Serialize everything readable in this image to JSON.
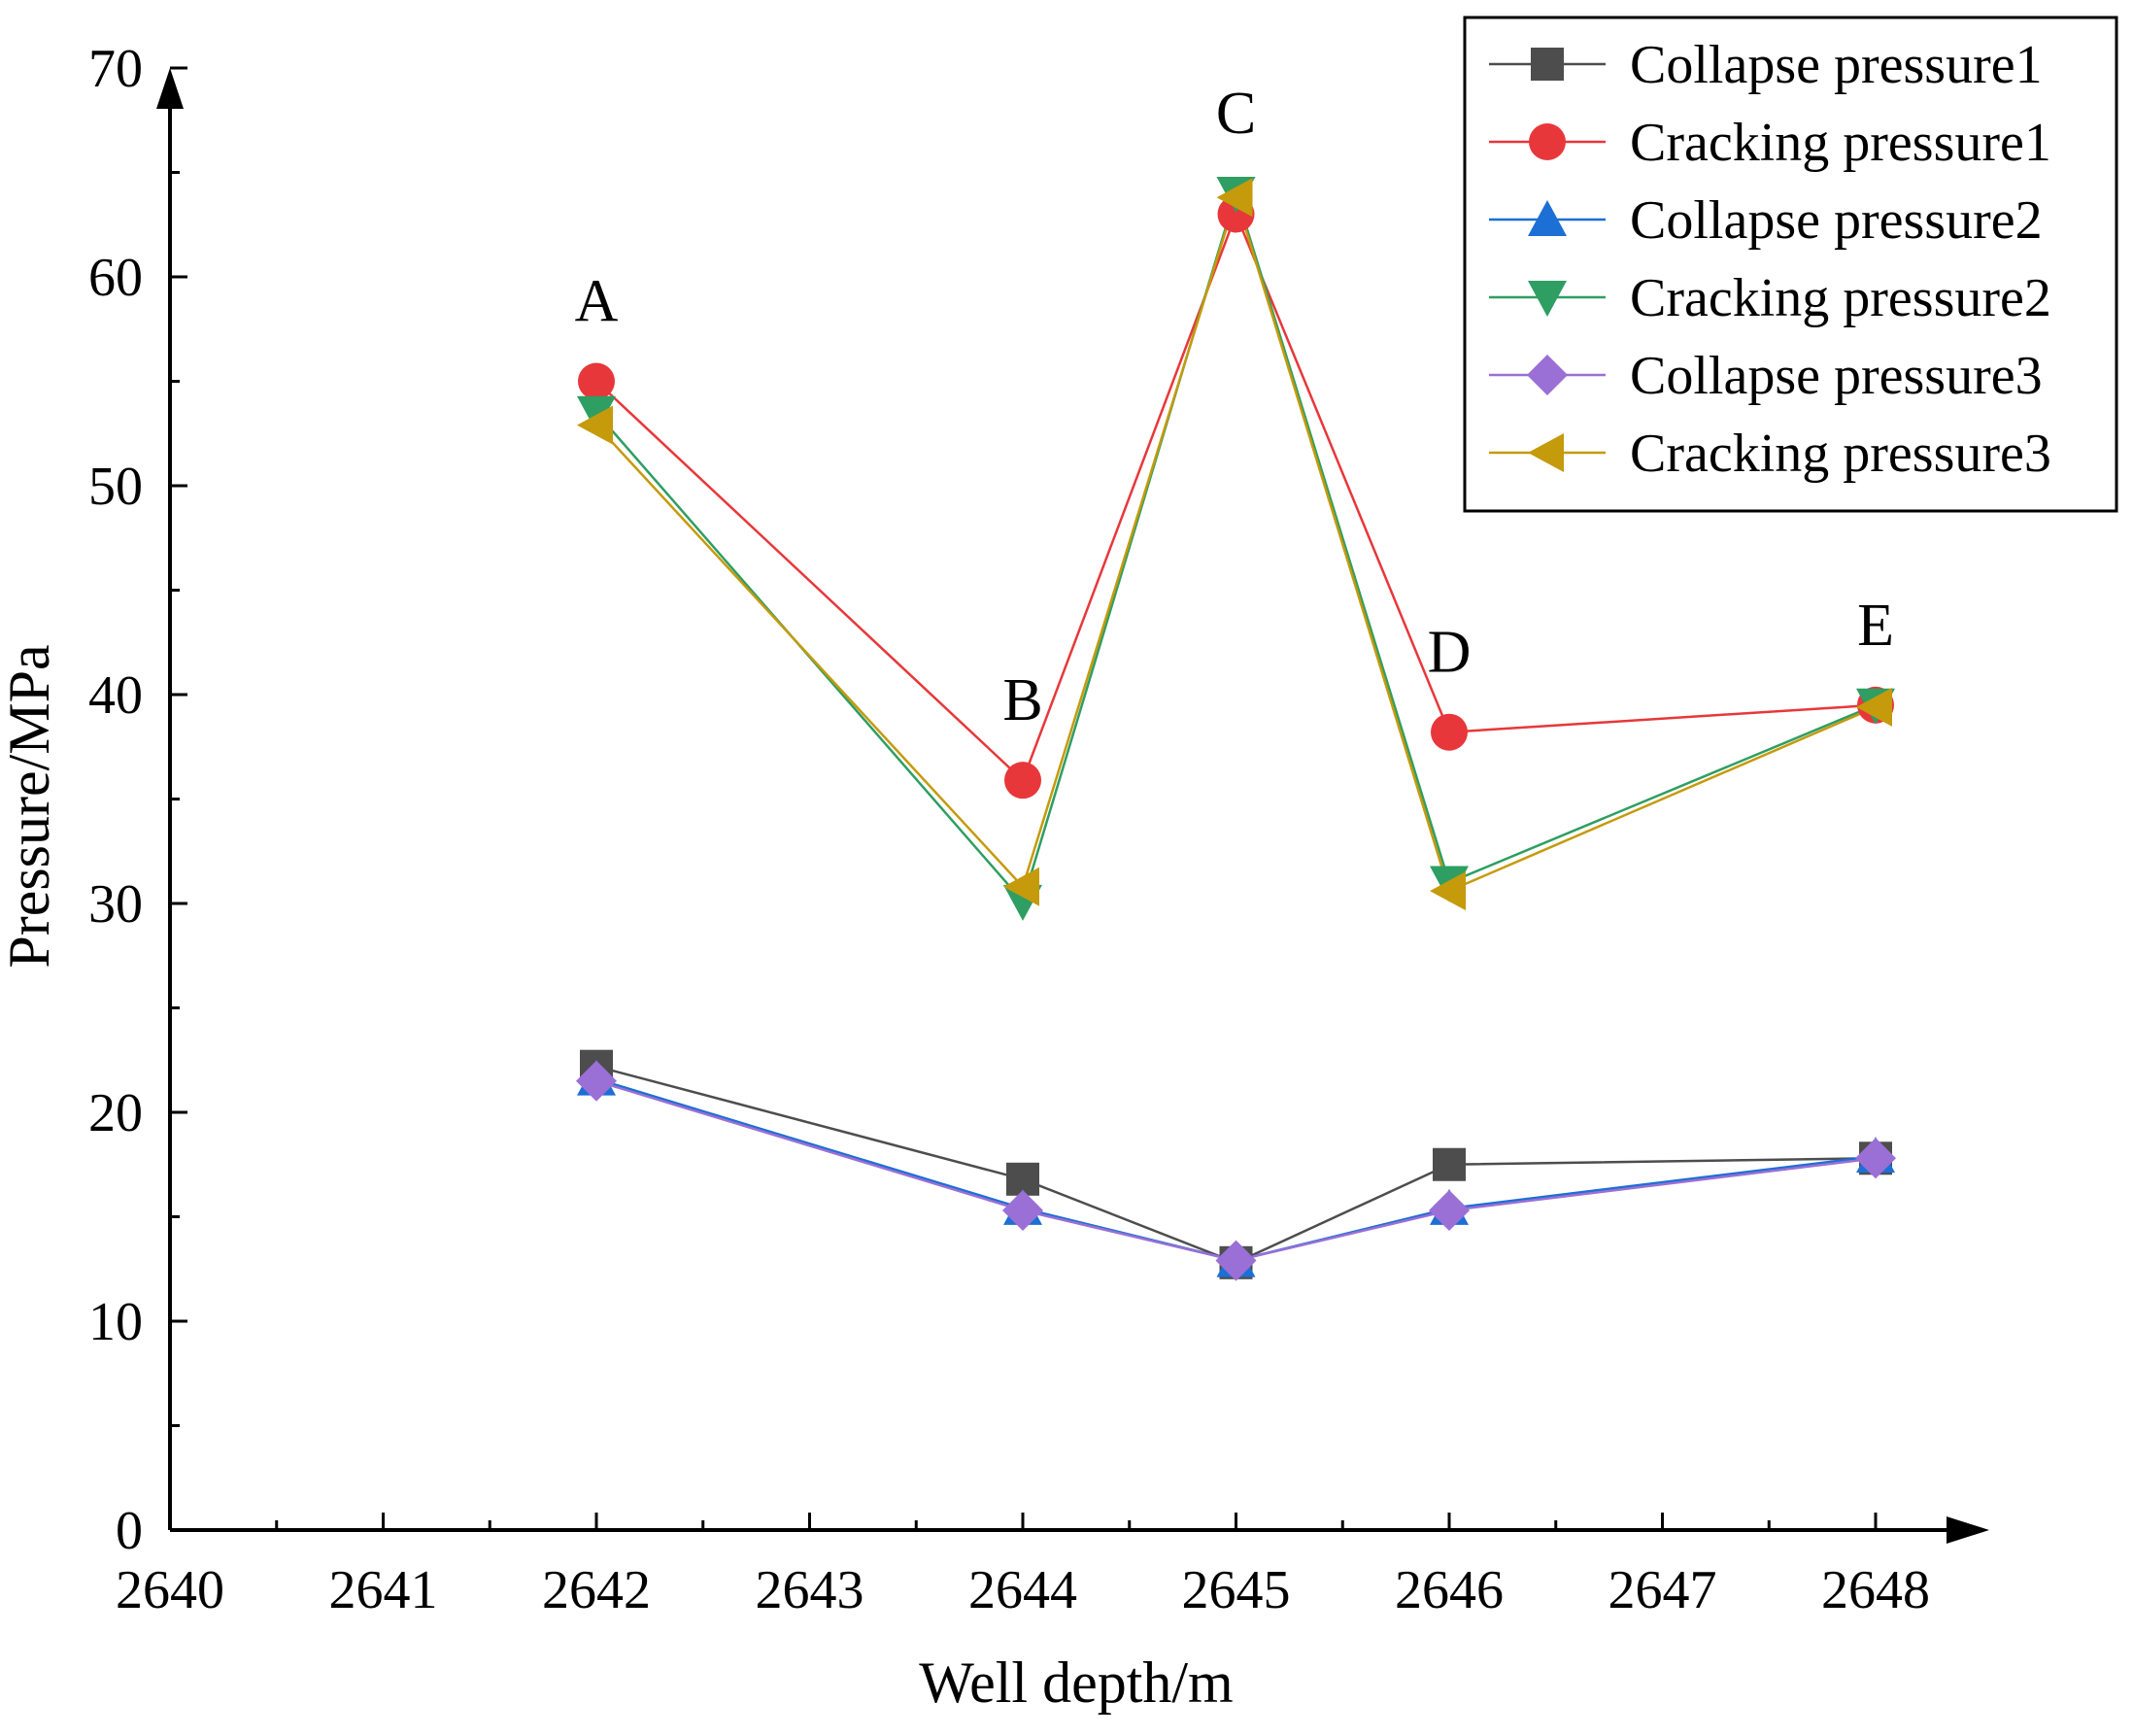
{
  "chart_data": {
    "type": "line",
    "title": "",
    "xlabel": "Well depth/m",
    "ylabel": "Pressure/MPa",
    "xlim": [
      2640,
      2648
    ],
    "ylim": [
      0,
      70
    ],
    "x_ticks": [
      "2640",
      "2641",
      "2642",
      "2643",
      "2644",
      "2645",
      "2646",
      "2647",
      "2648"
    ],
    "y_ticks": [
      "0",
      "10",
      "20",
      "30",
      "40",
      "50",
      "60",
      "70"
    ],
    "grid": false,
    "legend_position": "top-right",
    "x": [
      2642,
      2644,
      2645,
      2646,
      2648
    ],
    "point_labels": [
      "A",
      "B",
      "C",
      "D",
      "E"
    ],
    "series": [
      {
        "name": "Collapse pressure1",
        "marker": "square",
        "color": "#4d4d4d",
        "values": [
          22.2,
          16.8,
          12.8,
          17.5,
          17.8
        ]
      },
      {
        "name": "Cracking pressure1",
        "marker": "circle",
        "color": "#e8373a",
        "values": [
          55.0,
          35.9,
          63.0,
          38.2,
          39.5
        ]
      },
      {
        "name": "Collapse pressure2",
        "marker": "triangle-up",
        "color": "#1c6fd4",
        "values": [
          21.6,
          15.4,
          12.9,
          15.4,
          17.9
        ]
      },
      {
        "name": "Cracking pressure2",
        "marker": "triangle-down",
        "color": "#2e9e62",
        "values": [
          53.5,
          30.1,
          64.0,
          31.0,
          39.5
        ]
      },
      {
        "name": "Collapse pressure3",
        "marker": "diamond",
        "color": "#9a6fd6",
        "values": [
          21.5,
          15.3,
          12.9,
          15.3,
          17.8
        ]
      },
      {
        "name": "Cracking pressure3",
        "marker": "triangle-left",
        "color": "#c59a0b",
        "values": [
          52.9,
          30.8,
          63.8,
          30.6,
          39.4
        ]
      }
    ]
  }
}
